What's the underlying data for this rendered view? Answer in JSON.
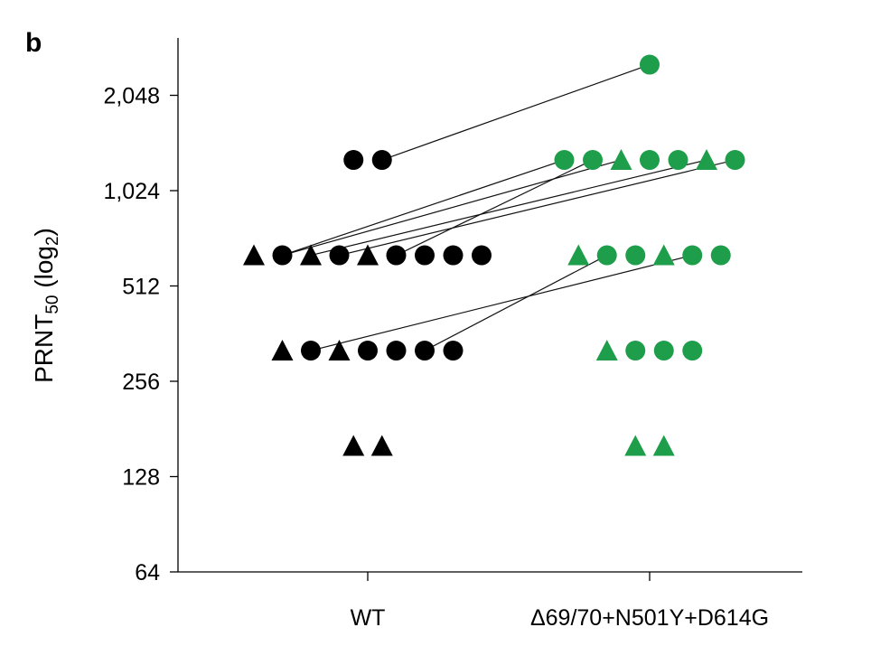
{
  "panel_label": "b",
  "chart_data": {
    "type": "scatter",
    "title": "",
    "ylabel": "PRNT",
    "ylabel_subscript": "50",
    "ylabel_suffix_open": " (log",
    "ylabel_suffix_sub": "2",
    "ylabel_suffix_close": ")",
    "yscale": "log2",
    "ylim": [
      64,
      2896
    ],
    "yticks": [
      64,
      128,
      256,
      512,
      1024,
      2048
    ],
    "ytick_labels": [
      "64",
      "128",
      "256",
      "512",
      "1,024",
      "2,048"
    ],
    "categories": [
      "WT",
      "Δ69/70+N501Y+D614G"
    ],
    "colors": {
      "WT": "#000000",
      "Δ69/70+N501Y+D614G": "#1e9e4a"
    },
    "series": [
      {
        "category": "WT",
        "groups": [
          {
            "value": 1280,
            "markers": [
              "circle",
              "circle"
            ]
          },
          {
            "value": 640,
            "markers": [
              "triangle",
              "circle",
              "triangle",
              "circle",
              "triangle",
              "circle",
              "circle",
              "circle",
              "circle"
            ]
          },
          {
            "value": 320,
            "markers": [
              "triangle",
              "circle",
              "triangle",
              "circle",
              "circle",
              "circle",
              "circle"
            ]
          },
          {
            "value": 160,
            "markers": [
              "triangle",
              "triangle"
            ]
          }
        ]
      },
      {
        "category": "Δ69/70+N501Y+D614G",
        "groups": [
          {
            "value": 2560,
            "markers": [
              "circle"
            ]
          },
          {
            "value": 1280,
            "markers": [
              "circle",
              "circle",
              "triangle",
              "circle",
              "circle",
              "triangle",
              "circle"
            ]
          },
          {
            "value": 640,
            "markers": [
              "triangle",
              "circle",
              "circle",
              "triangle",
              "circle",
              "circle"
            ]
          },
          {
            "value": 320,
            "markers": [
              "triangle",
              "circle",
              "circle",
              "circle"
            ]
          },
          {
            "value": 160,
            "markers": [
              "triangle",
              "triangle"
            ]
          }
        ]
      }
    ],
    "pairs": [
      {
        "from": [
          1280,
          1
        ],
        "to": [
          2560,
          0
        ]
      },
      {
        "from": [
          640,
          1
        ],
        "to": [
          1280,
          0
        ]
      },
      {
        "from": [
          640,
          1
        ],
        "to": [
          1280,
          2
        ]
      },
      {
        "from": [
          640,
          2
        ],
        "to": [
          1280,
          5
        ]
      },
      {
        "from": [
          640,
          3
        ],
        "to": [
          1280,
          6
        ]
      },
      {
        "from": [
          640,
          5
        ],
        "to": [
          1280,
          1
        ]
      },
      {
        "from": [
          320,
          1
        ],
        "to": [
          640,
          4
        ]
      },
      {
        "from": [
          320,
          5
        ],
        "to": [
          640,
          1
        ]
      }
    ]
  }
}
